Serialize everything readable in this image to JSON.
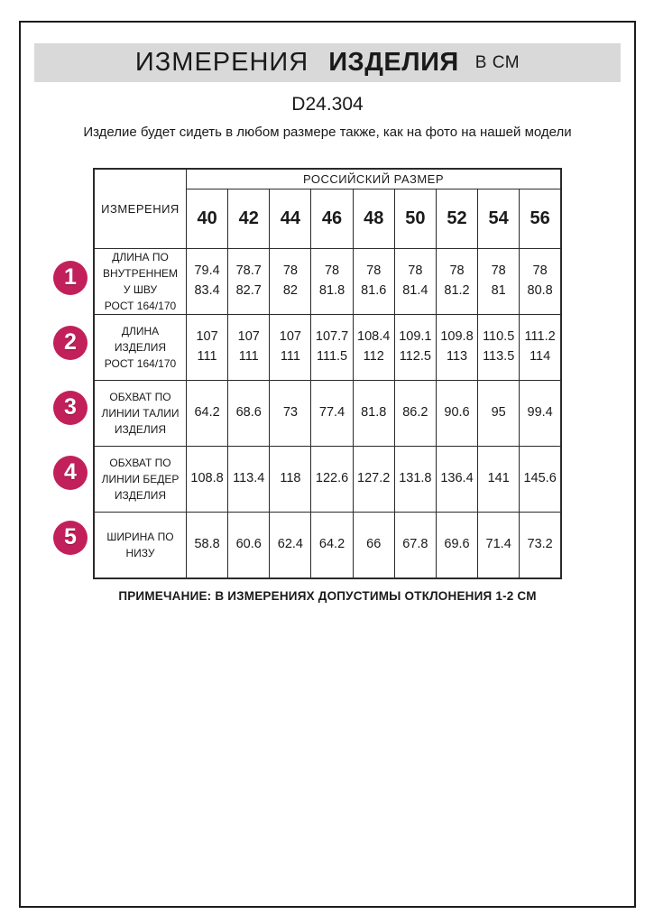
{
  "header": {
    "title_word1": "ИЗМЕРЕНИЯ",
    "title_word2": "ИЗДЕЛИЯ",
    "title_units": "В СМ",
    "model_code": "D24.304",
    "subtitle": "Изделие будет сидеть в любом размере также, как на фото на нашей модели"
  },
  "table": {
    "corner_header": "ИЗМЕРЕНИЯ",
    "group_header": "РОССИЙСКИЙ РАЗМЕР",
    "sizes": [
      "40",
      "42",
      "44",
      "46",
      "48",
      "50",
      "52",
      "54",
      "56"
    ],
    "rows": [
      {
        "num": "1",
        "label": "ДЛИНА ПО\nВНУТРЕННЕМ\nУ ШВУ\nРОСТ 164/170",
        "values": [
          "79.4\n83.4",
          "78.7\n82.7",
          "78\n82",
          "78\n81.8",
          "78\n81.6",
          "78\n81.4",
          "78\n81.2",
          "78\n81",
          "78\n80.8"
        ]
      },
      {
        "num": "2",
        "label": "ДЛИНА\nИЗДЕЛИЯ\nРОСТ 164/170",
        "values": [
          "107\n111",
          "107\n111",
          "107\n111",
          "107.7\n111.5",
          "108.4\n112",
          "109.1\n112.5",
          "109.8\n113",
          "110.5\n113.5",
          "111.2\n114"
        ]
      },
      {
        "num": "3",
        "label": "ОБХВАТ ПО\nЛИНИИ ТАЛИИ\nИЗДЕЛИЯ",
        "values": [
          "64.2",
          "68.6",
          "73",
          "77.4",
          "81.8",
          "86.2",
          "90.6",
          "95",
          "99.4"
        ]
      },
      {
        "num": "4",
        "label": "ОБХВАТ ПО\nЛИНИИ БЕДЕР\nИЗДЕЛИЯ",
        "values": [
          "108.8",
          "113.4",
          "118",
          "122.6",
          "127.2",
          "131.8",
          "136.4",
          "141",
          "145.6"
        ]
      },
      {
        "num": "5",
        "label": "ШИРИНА ПО\nНИЗУ",
        "values": [
          "58.8",
          "60.6",
          "62.4",
          "64.2",
          "66",
          "67.8",
          "69.6",
          "71.4",
          "73.2"
        ]
      }
    ]
  },
  "footer": {
    "note": "ПРИМЕЧАНИЕ: В ИЗМЕРЕНИЯХ ДОПУСТИМЫ ОТКЛОНЕНИЯ 1-2 СМ"
  },
  "colors": {
    "badge": "#c2205a",
    "banner_bg": "#d9d9d9",
    "border": "#2a2a2a"
  }
}
